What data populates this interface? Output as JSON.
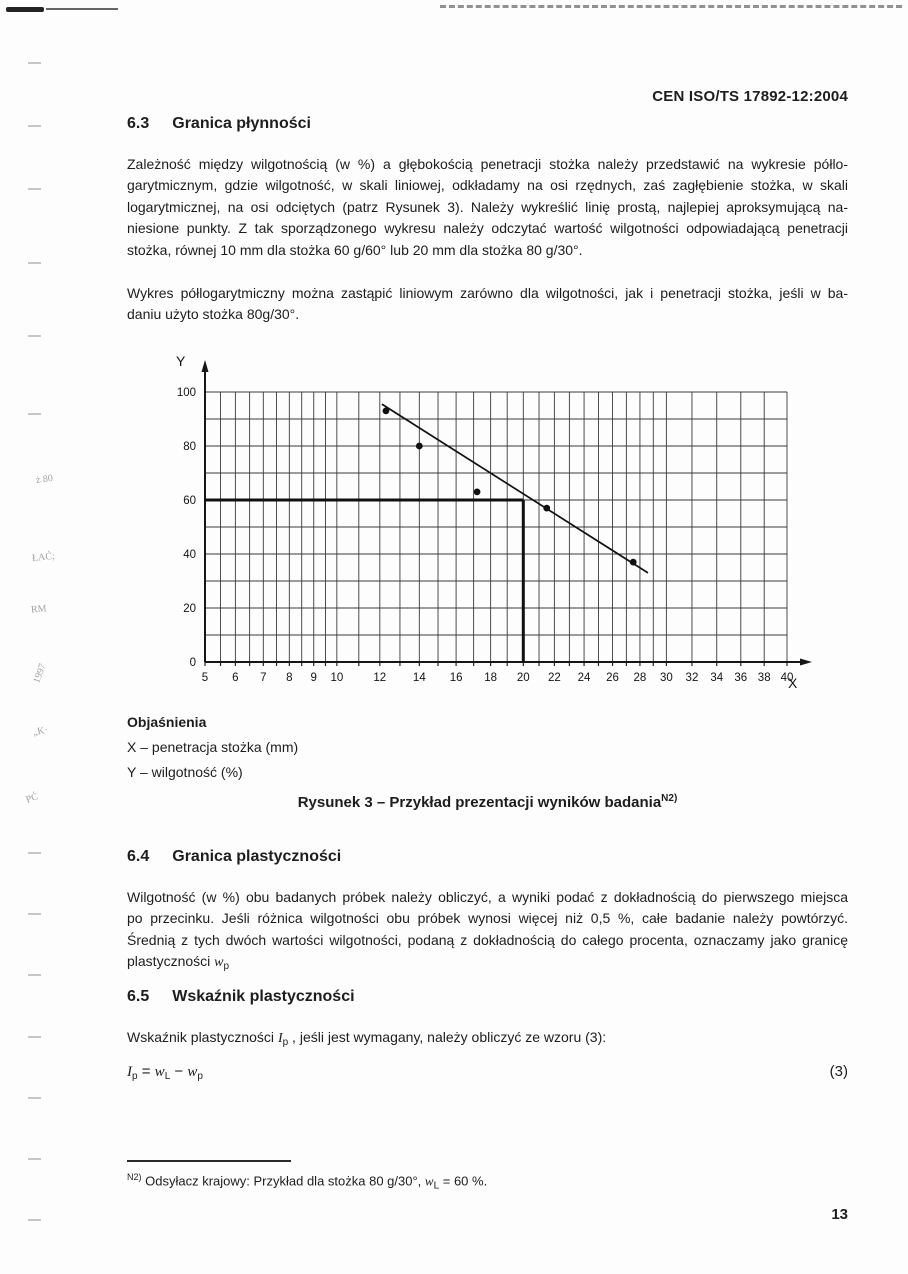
{
  "page": {
    "header": "CEN ISO/TS 17892-12:2004",
    "page_number": "13"
  },
  "margin_stamps": [
    "ż 80",
    "ŁAĆ;",
    "RM",
    "1997",
    "„K·",
    "PĆ"
  ],
  "sections": {
    "s63": {
      "number": "6.3",
      "title": "Granica płynności",
      "p1_lines": [
        "Zależność między wilgotnością (w %) a głębokością penetracji stożka należy przedstawić na wykresie półlo-",
        "garytmicznym, gdzie wilgotność, w skali liniowej, odkładamy na osi rzędnych, zaś zagłębienie stożka, w skali",
        "logarytmicznej, na osi odciętych (patrz Rysunek 3). Należy wykreślić linię prostą, najlepiej aproksymującą na-",
        "niesione punkty. Z tak sporządzonego wykresu należy odczytać wartość wilgotności odpowiadającą penetracji",
        "stożka, równej 10 mm dla stożka 60 g/60° lub 20 mm dla stożka 80 g/30°."
      ],
      "p2_lines": [
        "Wykres półlogarytmiczny można zastąpić liniowym zarówno dla wilgotności, jak i penetracji stożka, jeśli w ba-",
        "daniu użyto stożka 80g/30°."
      ]
    },
    "s64": {
      "number": "6.4",
      "title": "Granica plastyczności",
      "p1_lines": [
        "Wilgotność (w %) obu badanych próbek należy obliczyć, a wyniki podać z dokładnością do pierwszego miejsca",
        "po przecinku. Jeśli różnica wilgotności obu próbek wynosi więcej niż 0,5 %, całe badanie należy powtórzyć.",
        "Średnią z tych dwóch wartości wilgotności, podaną z dokładnością do całego procenta, oznaczamy jako granicę",
        "plastyczności "
      ],
      "wp_var": "w",
      "wp_sub": "p"
    },
    "s65": {
      "number": "6.5",
      "title": "Wskaźnik plastyczności",
      "p_pre": "Wskaźnik plastyczności ",
      "ip_var": "I",
      "ip_sub": "p",
      "p_post": " , jeśli jest wymagany, należy obliczyć ze wzoru (3):"
    }
  },
  "figure": {
    "legend_title": "Objaśnienia",
    "legend_x": "X – penetracja stożka (mm)",
    "legend_y": "Y – wilgotność (%)",
    "caption": "Rysunek 3 – Przykład prezentacji wyników badania",
    "caption_sup": "N2)"
  },
  "formula": {
    "lhs": "I",
    "lhs_sub": "p",
    "eq": " = ",
    "t1": "w",
    "t1_sub": "L",
    "op": " − ",
    "t2": "w",
    "t2_sub": "p",
    "number": "(3)"
  },
  "footnote": {
    "sup": "N2)",
    "text_pre": " Odsyłacz krajowy: Przykład dla stożka 80 g/30°, ",
    "var": "w",
    "var_sub": "L",
    "text_post": " = 60 %."
  },
  "chart_data": {
    "type": "scatter",
    "title": "",
    "xlabel": "X",
    "ylabel": "Y",
    "x_scale": "graph-paper (sqrt-spaced, log-style)",
    "xlim": [
      5,
      40
    ],
    "ylim": [
      0,
      100
    ],
    "x_ticks": [
      5,
      6,
      7,
      8,
      9,
      10,
      12,
      14,
      16,
      18,
      20,
      22,
      24,
      26,
      28,
      30,
      32,
      34,
      36,
      38,
      40
    ],
    "x_gridlines": [
      5,
      5.5,
      6,
      6.5,
      7,
      7.5,
      8,
      8.5,
      9,
      9.5,
      10,
      11,
      12,
      13,
      14,
      15,
      16,
      17,
      18,
      19,
      20,
      21,
      22,
      23,
      24,
      25,
      26,
      27,
      28,
      29,
      30,
      32,
      34,
      36,
      38,
      40
    ],
    "y_ticks": [
      0,
      20,
      40,
      60,
      80,
      100
    ],
    "y_gridline_step": 10,
    "grid": true,
    "points": [
      [
        12.3,
        93
      ],
      [
        14,
        80
      ],
      [
        17.2,
        63
      ],
      [
        21.5,
        57
      ],
      [
        27.5,
        37
      ]
    ],
    "trend_line": {
      "x1": 12.1,
      "y1": 95.5,
      "x2": 28.6,
      "y2": 33
    },
    "reference": {
      "x": 20,
      "y": 60
    }
  }
}
